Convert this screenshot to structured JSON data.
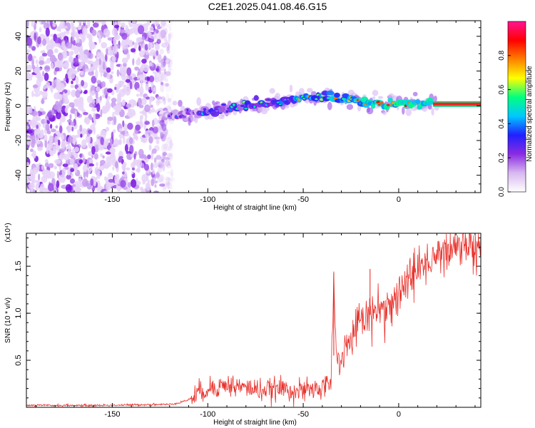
{
  "title": "C2E1.2025.041.08.46.G15",
  "chart_data": [
    {
      "type": "heatmap",
      "xlabel": "Height of straight line (km)",
      "ylabel": "Frequency (Hz)",
      "xlim": [
        -195,
        43
      ],
      "ylim": [
        -50,
        49
      ],
      "xticks": [
        -150,
        -100,
        -50,
        0
      ],
      "xtick_labels": [
        "-150",
        "-100",
        "-50",
        "0"
      ],
      "yticks": [
        -40,
        -20,
        0,
        20,
        40
      ],
      "ytick_labels": [
        "-40",
        "-20",
        "0",
        "20",
        "40"
      ],
      "colorbar": {
        "label": "Normalized spectral amplitude",
        "range": [
          0,
          1
        ],
        "ticks": [
          0.0,
          0.2,
          0.4,
          0.6,
          0.8
        ],
        "tick_labels": [
          "0.0",
          "0.2",
          "0.4",
          "0.6",
          "0.8"
        ],
        "colors": [
          "#ffffff",
          "#d8b8f0",
          "#8a2be2",
          "#2020ff",
          "#00c8ff",
          "#00ff80",
          "#ffff00",
          "#ff8000",
          "#ff0000",
          "#ff1493"
        ]
      },
      "ridge": {
        "x": [
          -125,
          -110,
          -100,
          -90,
          -80,
          -70,
          -60,
          -50,
          -40,
          -30,
          -20,
          -10,
          0,
          10,
          20,
          43
        ],
        "frequency": [
          -6,
          -4,
          -3,
          -2,
          0,
          1,
          3,
          5,
          5,
          4,
          2,
          1,
          1,
          1,
          1,
          1
        ]
      },
      "noise_region": {
        "x": [
          -195,
          -118
        ],
        "frequency": [
          -50,
          49
        ]
      },
      "grid": false
    },
    {
      "type": "line",
      "xlabel": "Height of straight line (km)",
      "ylabel": "SNR (10 * v/v)",
      "y_multiplier": "(x10⁴)",
      "xlim": [
        -195,
        43
      ],
      "ylim": [
        0,
        1.85
      ],
      "xticks": [
        -150,
        -100,
        -50,
        0
      ],
      "xtick_labels": [
        "-150",
        "-100",
        "-50",
        "0"
      ],
      "yticks": [
        0.5,
        1.0,
        1.5
      ],
      "ytick_labels": [
        "0.5",
        "1.0",
        "1.5"
      ],
      "series": [
        {
          "color": "#e8302a",
          "x": [
            -195,
            -180,
            -160,
            -140,
            -130,
            -120,
            -115,
            -110,
            -105,
            -100,
            -95,
            -90,
            -85,
            -80,
            -75,
            -70,
            -65,
            -60,
            -55,
            -50,
            -45,
            -40,
            -36,
            -35,
            -34,
            -33,
            -32,
            -30,
            -28,
            -25,
            -22,
            -20,
            -18,
            -15,
            -12,
            -10,
            -8,
            -5,
            -3,
            0,
            3,
            5,
            8,
            10,
            12,
            15,
            18,
            20,
            25,
            30,
            35,
            40,
            43
          ],
          "y": [
            0.02,
            0.02,
            0.02,
            0.025,
            0.03,
            0.03,
            0.05,
            0.08,
            0.15,
            0.2,
            0.22,
            0.24,
            0.22,
            0.21,
            0.19,
            0.18,
            0.19,
            0.2,
            0.18,
            0.17,
            0.19,
            0.2,
            0.28,
            0.55,
            1.43,
            0.6,
            0.45,
            0.48,
            0.62,
            0.7,
            0.85,
            1.05,
            0.95,
            1.0,
            1.1,
            1.08,
            1.05,
            1.12,
            1.15,
            1.2,
            1.3,
            1.4,
            1.38,
            1.45,
            1.5,
            1.55,
            1.6,
            1.62,
            1.68,
            1.72,
            1.75,
            1.77,
            1.78
          ]
        }
      ],
      "annotations": [
        {
          "x": -34,
          "y": 1.43,
          "text": ""
        },
        {
          "x": -15,
          "y": 1.47,
          "text": ""
        }
      ],
      "grid": false
    }
  ]
}
